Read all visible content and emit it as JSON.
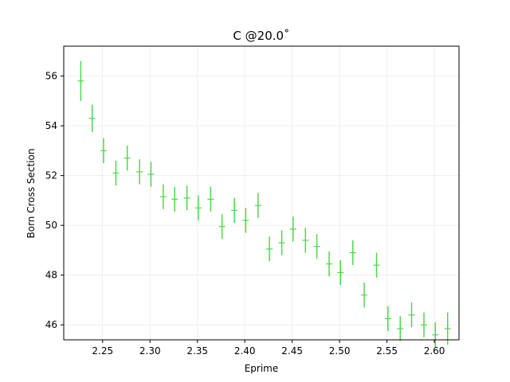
{
  "chart_data": {
    "type": "errorbar-scatter",
    "title": "C @20.0˚",
    "xlabel": "Eprime",
    "ylabel": "Born Cross Section",
    "xlim": [
      2.209,
      2.626
    ],
    "ylim": [
      45.4,
      57.2
    ],
    "xticks": [
      2.25,
      2.3,
      2.35,
      2.4,
      2.45,
      2.5,
      2.55,
      2.6
    ],
    "xtick_labels": [
      "2.25",
      "2.30",
      "2.35",
      "2.40",
      "2.45",
      "2.50",
      "2.55",
      "2.60"
    ],
    "yticks": [
      46,
      48,
      50,
      52,
      54,
      56
    ],
    "ytick_labels": [
      "46",
      "48",
      "50",
      "52",
      "54",
      "56"
    ],
    "grid": true,
    "series_color": "#4cd94c",
    "series": [
      {
        "name": "C @20.0",
        "x": [
          2.227,
          2.239,
          2.251,
          2.264,
          2.276,
          2.289,
          2.301,
          2.314,
          2.326,
          2.339,
          2.351,
          2.364,
          2.376,
          2.389,
          2.401,
          2.414,
          2.426,
          2.439,
          2.451,
          2.464,
          2.476,
          2.489,
          2.501,
          2.514,
          2.526,
          2.539,
          2.551,
          2.564,
          2.576,
          2.589,
          2.601,
          2.614
        ],
        "y": [
          55.8,
          54.3,
          53.0,
          52.1,
          52.7,
          52.15,
          52.05,
          51.15,
          51.05,
          51.1,
          50.7,
          51.05,
          49.95,
          50.6,
          50.2,
          50.8,
          49.05,
          49.3,
          49.85,
          49.4,
          49.15,
          48.45,
          48.1,
          48.9,
          47.2,
          48.4,
          46.25,
          45.85,
          46.4,
          46.0,
          45.6,
          45.85
        ],
        "yerr": [
          0.8,
          0.55,
          0.5,
          0.5,
          0.5,
          0.5,
          0.5,
          0.5,
          0.5,
          0.5,
          0.5,
          0.5,
          0.5,
          0.5,
          0.5,
          0.5,
          0.5,
          0.5,
          0.5,
          0.5,
          0.5,
          0.5,
          0.5,
          0.5,
          0.5,
          0.5,
          0.5,
          0.5,
          0.5,
          0.5,
          0.5,
          0.65
        ]
      }
    ]
  }
}
